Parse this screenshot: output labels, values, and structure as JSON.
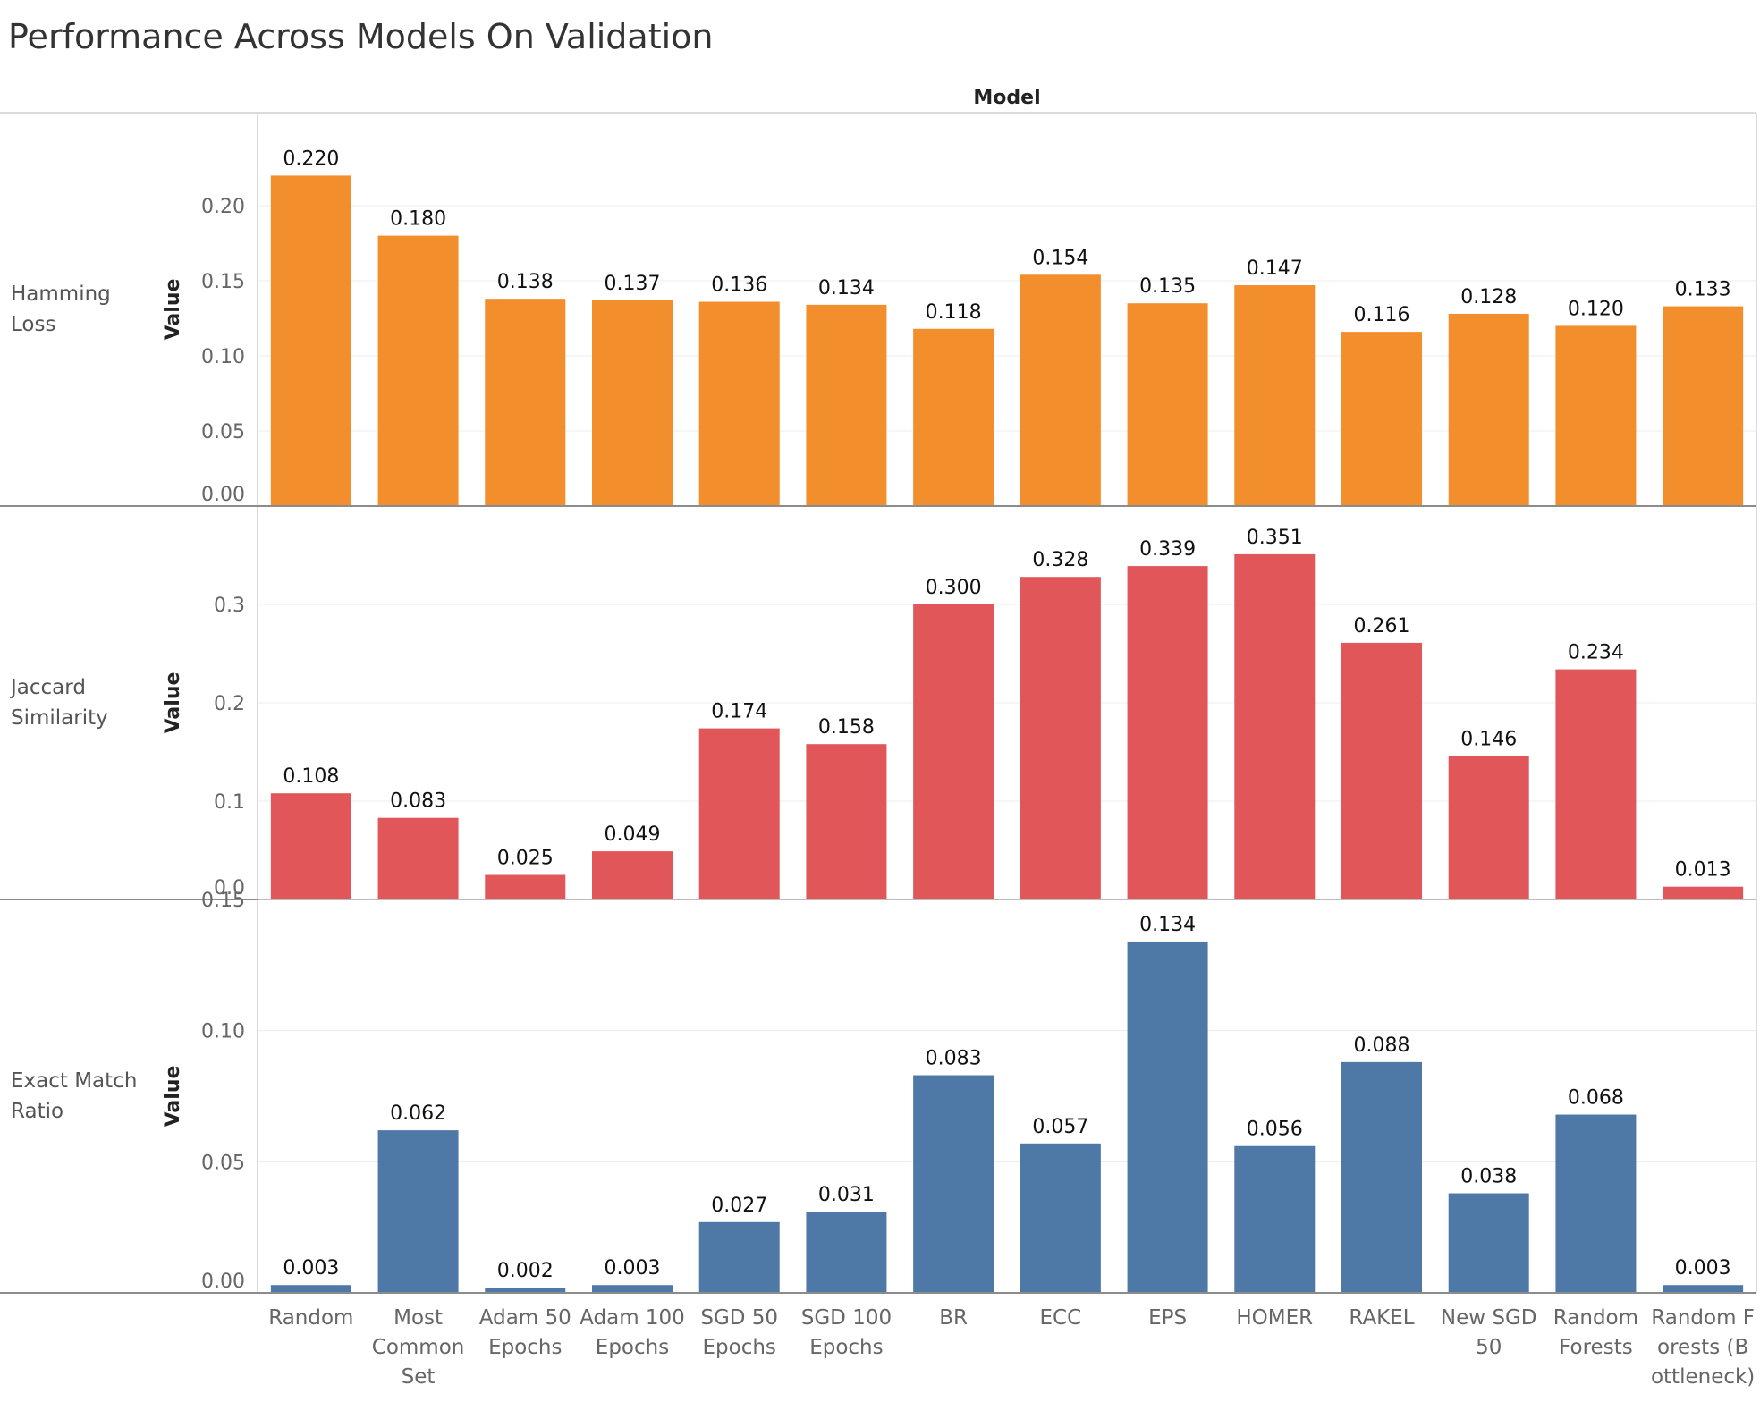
{
  "chart_data": {
    "type": "bar",
    "title": "Performance Across Models On Validation",
    "column_header": "Model",
    "categories": [
      "Random",
      "Most Common Set",
      "Adam 50 Epochs",
      "Adam 100 Epochs",
      "SGD 50 Epochs",
      "SGD 100 Epochs",
      "BR",
      "ECC",
      "EPS",
      "HOMER",
      "RAKEL",
      "New SGD 50",
      "Random Forests",
      "Random Forests (Bottleneck)"
    ],
    "category_lines": [
      [
        "Random"
      ],
      [
        "Most",
        "Common",
        "Set"
      ],
      [
        "Adam 50",
        "Epochs"
      ],
      [
        "Adam 100",
        "Epochs"
      ],
      [
        "SGD 50",
        "Epochs"
      ],
      [
        "SGD 100",
        "Epochs"
      ],
      [
        "BR"
      ],
      [
        "ECC"
      ],
      [
        "EPS"
      ],
      [
        "HOMER"
      ],
      [
        "RAKEL"
      ],
      [
        "New SGD",
        "50"
      ],
      [
        "Random",
        "Forests"
      ],
      [
        "Random F",
        "orests (B",
        "ottleneck)"
      ]
    ],
    "panels": [
      {
        "name": "Hamming Loss",
        "name_lines": [
          "Hamming",
          "Loss"
        ],
        "ylabel": "Value",
        "color": "#f28e2b",
        "ylim": [
          0,
          0.25
        ],
        "yticks": [
          0.0,
          0.05,
          0.1,
          0.15,
          0.2
        ],
        "tick_labels": [
          "0.00",
          "0.05",
          "0.10",
          "0.15",
          "0.20"
        ],
        "values": [
          0.22,
          0.18,
          0.138,
          0.137,
          0.136,
          0.134,
          0.118,
          0.154,
          0.135,
          0.147,
          0.116,
          0.128,
          0.12,
          0.133
        ],
        "labels": [
          "0.220",
          "0.180",
          "0.138",
          "0.137",
          "0.136",
          "0.134",
          "0.118",
          "0.154",
          "0.135",
          "0.147",
          "0.116",
          "0.128",
          "0.120",
          "0.133"
        ]
      },
      {
        "name": "Jaccard Similarity",
        "name_lines": [
          "Jaccard",
          "Similarity"
        ],
        "ylabel": "Value",
        "color": "#e15759",
        "ylim": [
          0,
          0.4
        ],
        "yticks": [
          0.0,
          0.1,
          0.2,
          0.3
        ],
        "tick_labels": [
          "0.0",
          "0.1",
          "0.2",
          "0.3"
        ],
        "values": [
          0.108,
          0.083,
          0.025,
          0.049,
          0.174,
          0.158,
          0.3,
          0.328,
          0.339,
          0.351,
          0.261,
          0.146,
          0.234,
          0.013
        ],
        "labels": [
          "0.108",
          "0.083",
          "0.025",
          "0.049",
          "0.174",
          "0.158",
          "0.300",
          "0.328",
          "0.339",
          "0.351",
          "0.261",
          "0.146",
          "0.234",
          "0.013"
        ]
      },
      {
        "name": "Exact Match Ratio",
        "name_lines": [
          "Exact Match",
          "Ratio"
        ],
        "ylabel": "Value",
        "color": "#4e79a7",
        "ylim": [
          0,
          0.15
        ],
        "yticks": [
          0.0,
          0.05,
          0.1,
          0.15
        ],
        "tick_labels": [
          "0.00",
          "0.05",
          "0.10",
          "0.15"
        ],
        "values": [
          0.003,
          0.062,
          0.002,
          0.003,
          0.027,
          0.031,
          0.083,
          0.057,
          0.134,
          0.056,
          0.088,
          0.038,
          0.068,
          0.003
        ],
        "labels": [
          "0.003",
          "0.062",
          "0.002",
          "0.003",
          "0.027",
          "0.031",
          "0.083",
          "0.057",
          "0.134",
          "0.056",
          "0.088",
          "0.038",
          "0.068",
          "0.003"
        ]
      }
    ],
    "grid": true,
    "legend": "none"
  }
}
